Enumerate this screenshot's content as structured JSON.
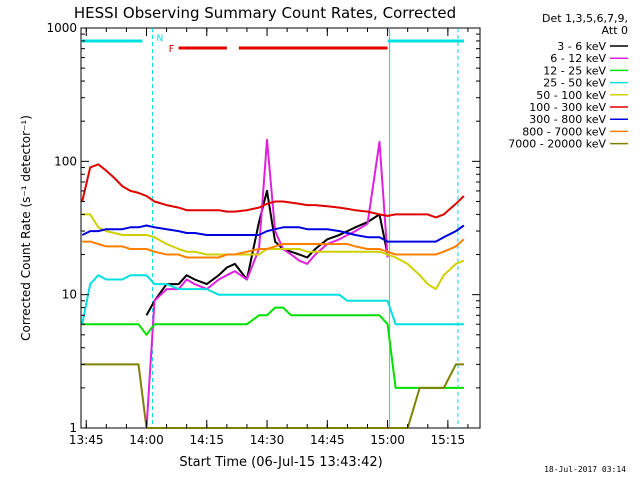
{
  "chart_data": {
    "type": "line",
    "title": "HESSI Observing Summary Count Rates, Corrected",
    "xlabel": "Start Time (06-Jul-15 13:43:42)",
    "ylabel": "Corrected Count Rate (s⁻¹ detector⁻¹)",
    "xlim": [
      "13:43:42",
      "15:23:00"
    ],
    "ylim": [
      1,
      1000
    ],
    "yscale": "log",
    "x_ticks": [
      "13:45",
      "14:00",
      "14:15",
      "14:30",
      "14:45",
      "15:00",
      "15:15"
    ],
    "y_ticks": [
      "1",
      "10",
      "100",
      "1000"
    ],
    "legend_header": [
      "Det 1,3,5,6,7,9,",
      "Att 0"
    ],
    "legend_position": "right",
    "flag_labels": [
      "N",
      "F"
    ],
    "x": [
      "13:44",
      "13:46",
      "13:48",
      "13:50",
      "13:52",
      "13:54",
      "13:56",
      "13:58",
      "14:00",
      "14:02",
      "14:05",
      "14:08",
      "14:10",
      "14:12",
      "14:15",
      "14:18",
      "14:20",
      "14:22",
      "14:25",
      "14:28",
      "14:30",
      "14:32",
      "14:34",
      "14:36",
      "14:38",
      "14:40",
      "14:42",
      "14:45",
      "14:48",
      "14:50",
      "14:52",
      "14:55",
      "14:58",
      "15:00",
      "15:02",
      "15:05",
      "15:08",
      "15:10",
      "15:12",
      "15:14",
      "15:17",
      "15:19"
    ],
    "series": [
      {
        "name": "3 - 6 keV",
        "color": "#000000",
        "values": [
          null,
          null,
          null,
          null,
          null,
          null,
          null,
          null,
          7,
          9,
          12,
          12,
          14,
          13,
          12,
          14,
          16,
          17,
          13,
          35,
          60,
          25,
          22,
          21,
          20,
          19,
          22,
          26,
          28,
          30,
          32,
          35,
          40,
          20,
          null,
          null,
          null,
          null,
          null,
          null,
          null,
          null
        ]
      },
      {
        "name": "6 - 12 keV",
        "color": "#e020e0",
        "values": [
          null,
          null,
          null,
          null,
          null,
          null,
          null,
          null,
          1,
          9,
          11,
          11,
          13,
          12,
          11,
          13,
          14,
          15,
          13,
          22,
          145,
          30,
          22,
          20,
          18,
          17,
          20,
          24,
          26,
          28,
          30,
          34,
          140,
          19,
          null,
          null,
          null,
          null,
          null,
          null,
          null,
          null
        ]
      },
      {
        "name": "12 - 25 keV",
        "color": "#00e000",
        "values": [
          6,
          6,
          6,
          6,
          6,
          6,
          6,
          6,
          5,
          6,
          6,
          6,
          6,
          6,
          6,
          6,
          6,
          6,
          6,
          7,
          7,
          8,
          8,
          7,
          7,
          7,
          7,
          7,
          7,
          7,
          7,
          7,
          7,
          6,
          2,
          2,
          2,
          2,
          2,
          2,
          2,
          2
        ]
      },
      {
        "name": "25 - 50 keV",
        "color": "#00e0e0",
        "values": [
          6,
          12,
          14,
          13,
          13,
          13,
          14,
          14,
          14,
          12,
          12,
          11,
          11,
          11,
          11,
          10,
          10,
          10,
          10,
          10,
          10,
          10,
          10,
          10,
          10,
          10,
          10,
          10,
          10,
          9,
          9,
          9,
          9,
          9,
          6,
          6,
          6,
          6,
          6,
          6,
          6,
          6
        ]
      },
      {
        "name": "50 - 100 keV",
        "color": "#d0d000",
        "values": [
          40,
          40,
          32,
          30,
          29,
          28,
          28,
          28,
          28,
          27,
          24,
          22,
          21,
          21,
          20,
          20,
          20,
          20,
          20,
          20,
          22,
          22,
          22,
          22,
          22,
          21,
          21,
          21,
          21,
          21,
          21,
          21,
          21,
          20,
          19,
          17,
          14,
          12,
          11,
          14,
          17,
          18
        ]
      },
      {
        "name": "100 - 300 keV",
        "color": "#e00000",
        "values": [
          50,
          90,
          95,
          85,
          75,
          65,
          60,
          58,
          55,
          50,
          47,
          45,
          43,
          43,
          43,
          43,
          42,
          42,
          43,
          45,
          48,
          50,
          50,
          49,
          48,
          47,
          47,
          46,
          45,
          44,
          43,
          42,
          40,
          39,
          40,
          40,
          40,
          40,
          38,
          40,
          48,
          55
        ]
      },
      {
        "name": "300 - 800 keV",
        "color": "#0000e0",
        "values": [
          28,
          30,
          30,
          31,
          31,
          31,
          32,
          32,
          33,
          32,
          31,
          30,
          29,
          29,
          28,
          28,
          28,
          28,
          28,
          28,
          30,
          31,
          32,
          32,
          32,
          31,
          31,
          31,
          30,
          29,
          28,
          27,
          27,
          25,
          25,
          25,
          25,
          25,
          25,
          27,
          30,
          33
        ]
      },
      {
        "name": "800 - 7000 keV",
        "color": "#ff8000",
        "values": [
          25,
          25,
          24,
          23,
          23,
          23,
          22,
          22,
          22,
          21,
          20,
          20,
          19,
          19,
          19,
          19,
          20,
          20,
          21,
          22,
          22,
          23,
          24,
          24,
          24,
          24,
          24,
          24,
          24,
          24,
          23,
          22,
          22,
          21,
          20,
          20,
          20,
          20,
          20,
          21,
          23,
          26
        ]
      },
      {
        "name": "7000 - 20000 keV",
        "color": "#808000",
        "values": [
          3,
          3,
          3,
          3,
          3,
          3,
          3,
          3,
          1,
          1,
          1,
          1,
          1,
          1,
          1,
          1,
          1,
          1,
          1,
          1,
          1,
          1,
          1,
          1,
          1,
          1,
          1,
          1,
          1,
          1,
          1,
          1,
          1,
          1,
          1,
          1,
          2,
          2,
          2,
          2,
          3,
          3
        ]
      }
    ]
  },
  "stamp": "18-Jul-2017 03:14"
}
